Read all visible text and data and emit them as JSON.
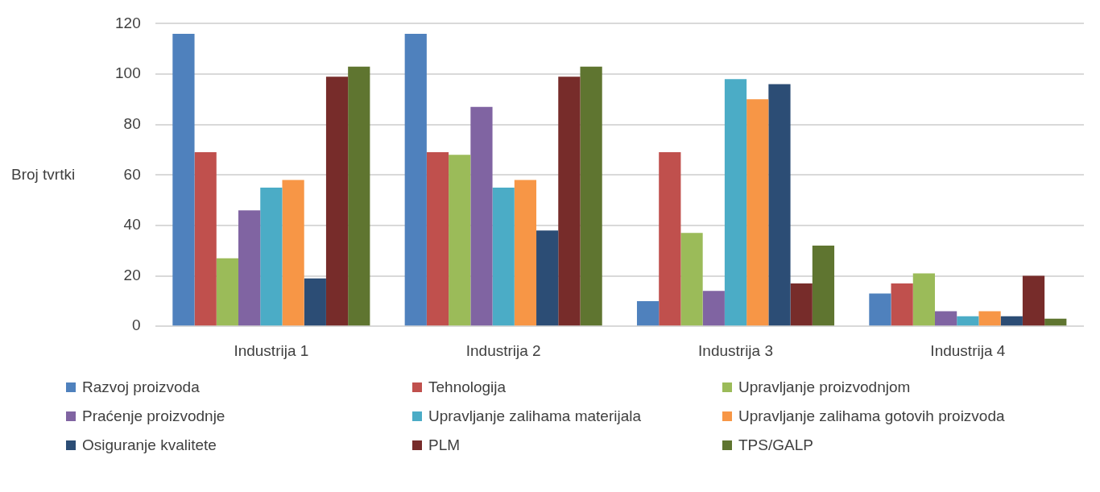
{
  "chart_data": {
    "type": "bar",
    "ylabel": "Broj tvrtki",
    "categories": [
      "Industrija 1",
      "Industrija 2",
      "Industrija 3",
      "Industrija 4"
    ],
    "series": [
      {
        "name": "Razvoj proizvoda",
        "color": "#4f81bd",
        "values": [
          116,
          116,
          10,
          13
        ]
      },
      {
        "name": "Tehnologija",
        "color": "#c0504d",
        "values": [
          69,
          69,
          69,
          17
        ]
      },
      {
        "name": "Upravljanje proizvodnjom",
        "color": "#9bbb59",
        "values": [
          27,
          68,
          37,
          21
        ]
      },
      {
        "name": "Praćenje proizvodnje",
        "color": "#8064a2",
        "values": [
          46,
          87,
          14,
          6
        ]
      },
      {
        "name": "Upravljanje zalihama materijala",
        "color": "#4bacc6",
        "values": [
          55,
          55,
          98,
          4
        ]
      },
      {
        "name": "Upravljanje zalihama gotovih proizvoda",
        "color": "#f79646",
        "values": [
          58,
          58,
          90,
          6
        ]
      },
      {
        "name": "Osiguranje kvalitete",
        "color": "#2c4d75",
        "values": [
          19,
          38,
          96,
          4
        ]
      },
      {
        "name": "PLM",
        "color": "#772c2a",
        "values": [
          99,
          99,
          17,
          20
        ]
      },
      {
        "name": "TPS/GALP",
        "color": "#5f7530",
        "values": [
          103,
          103,
          32,
          3
        ]
      }
    ],
    "ylim": [
      0,
      120
    ],
    "yticks": [
      0,
      20,
      40,
      60,
      80,
      100,
      120
    ],
    "grid": "y",
    "legend": "bottom"
  }
}
